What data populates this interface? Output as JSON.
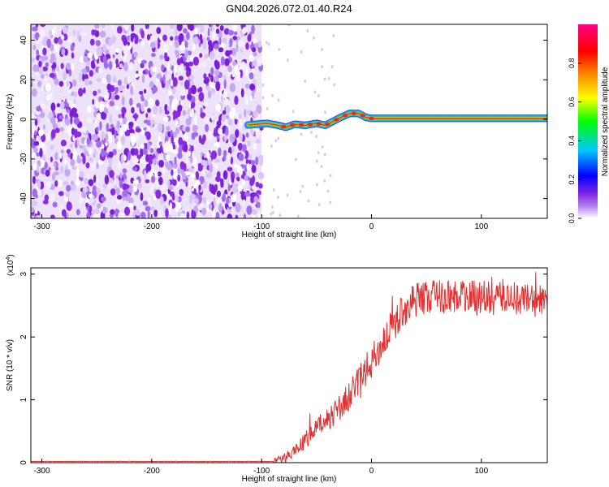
{
  "title": "GN04.2026.072.01.40.R24",
  "chart_data": [
    {
      "type": "heatmap",
      "name": "spectrogram",
      "xlabel": "Height of straight line (km)",
      "ylabel": "Frequency (Hz)",
      "xlim": [
        -310,
        160
      ],
      "ylim": [
        -50,
        48
      ],
      "x_ticks": [
        -300,
        -200,
        -100,
        0,
        100
      ],
      "y_ticks": [
        -40,
        -20,
        0,
        20,
        40
      ],
      "x_tick_labels": [
        "-300",
        "-200",
        "-100",
        "0",
        "100"
      ],
      "y_tick_labels": [
        "-40",
        "-20",
        "0",
        "20",
        "40"
      ],
      "noise_region_x": [
        -310,
        -100
      ],
      "signal_track": {
        "x": [
          -115,
          -105,
          -95,
          -85,
          -78,
          -70,
          -60,
          -50,
          -42,
          -35,
          -28,
          -20,
          -12,
          -5,
          0,
          10,
          50,
          100,
          160
        ],
        "freq": [
          -3,
          -2.5,
          -2,
          -3,
          -4,
          -2.5,
          -3,
          -2,
          -3,
          -1,
          1,
          3,
          3,
          1,
          0.5,
          0.5,
          0.5,
          0.5,
          0.5
        ]
      }
    },
    {
      "type": "colorbar",
      "name": "colorbar",
      "label": "Normalized spectral amplitude",
      "range": [
        0,
        1
      ],
      "ticks": [
        0.0,
        0.2,
        0.4,
        0.6,
        0.8
      ],
      "tick_labels": [
        "0.0",
        "0.2",
        "0.4",
        "0.6",
        "0.8"
      ],
      "colors": [
        "#ffffff",
        "#8a2be2",
        "#0000ff",
        "#00c8ff",
        "#00ff00",
        "#ffff00",
        "#ff8000",
        "#ff0000",
        "#ff0080"
      ]
    },
    {
      "type": "line",
      "name": "snr",
      "xlabel": "Height of straight line (km)",
      "ylabel": "SNR (10 * v/v)",
      "y_multiplier": "(x10",
      "y_multiplier_exp": "4",
      "y_multiplier_close": ")",
      "xlim": [
        -310,
        160
      ],
      "ylim": [
        0,
        3.1
      ],
      "x_ticks": [
        -300,
        -200,
        -100,
        0,
        100
      ],
      "y_ticks": [
        0,
        1,
        2,
        3
      ],
      "x_tick_labels": [
        "-300",
        "-200",
        "-100",
        "0",
        "100"
      ],
      "y_tick_labels": [
        "0",
        "1",
        "2",
        "3"
      ],
      "line_color": "#e03030",
      "trend": {
        "x": [
          -310,
          -90,
          -80,
          -70,
          -60,
          -50,
          -40,
          -30,
          -20,
          -10,
          0,
          10,
          20,
          30,
          40,
          60,
          80,
          100,
          120,
          140,
          160
        ],
        "y": [
          0.02,
          0.02,
          0.05,
          0.2,
          0.35,
          0.55,
          0.7,
          0.85,
          1.05,
          1.3,
          1.6,
          1.9,
          2.2,
          2.45,
          2.6,
          2.65,
          2.65,
          2.6,
          2.65,
          2.6,
          2.55
        ]
      }
    }
  ]
}
